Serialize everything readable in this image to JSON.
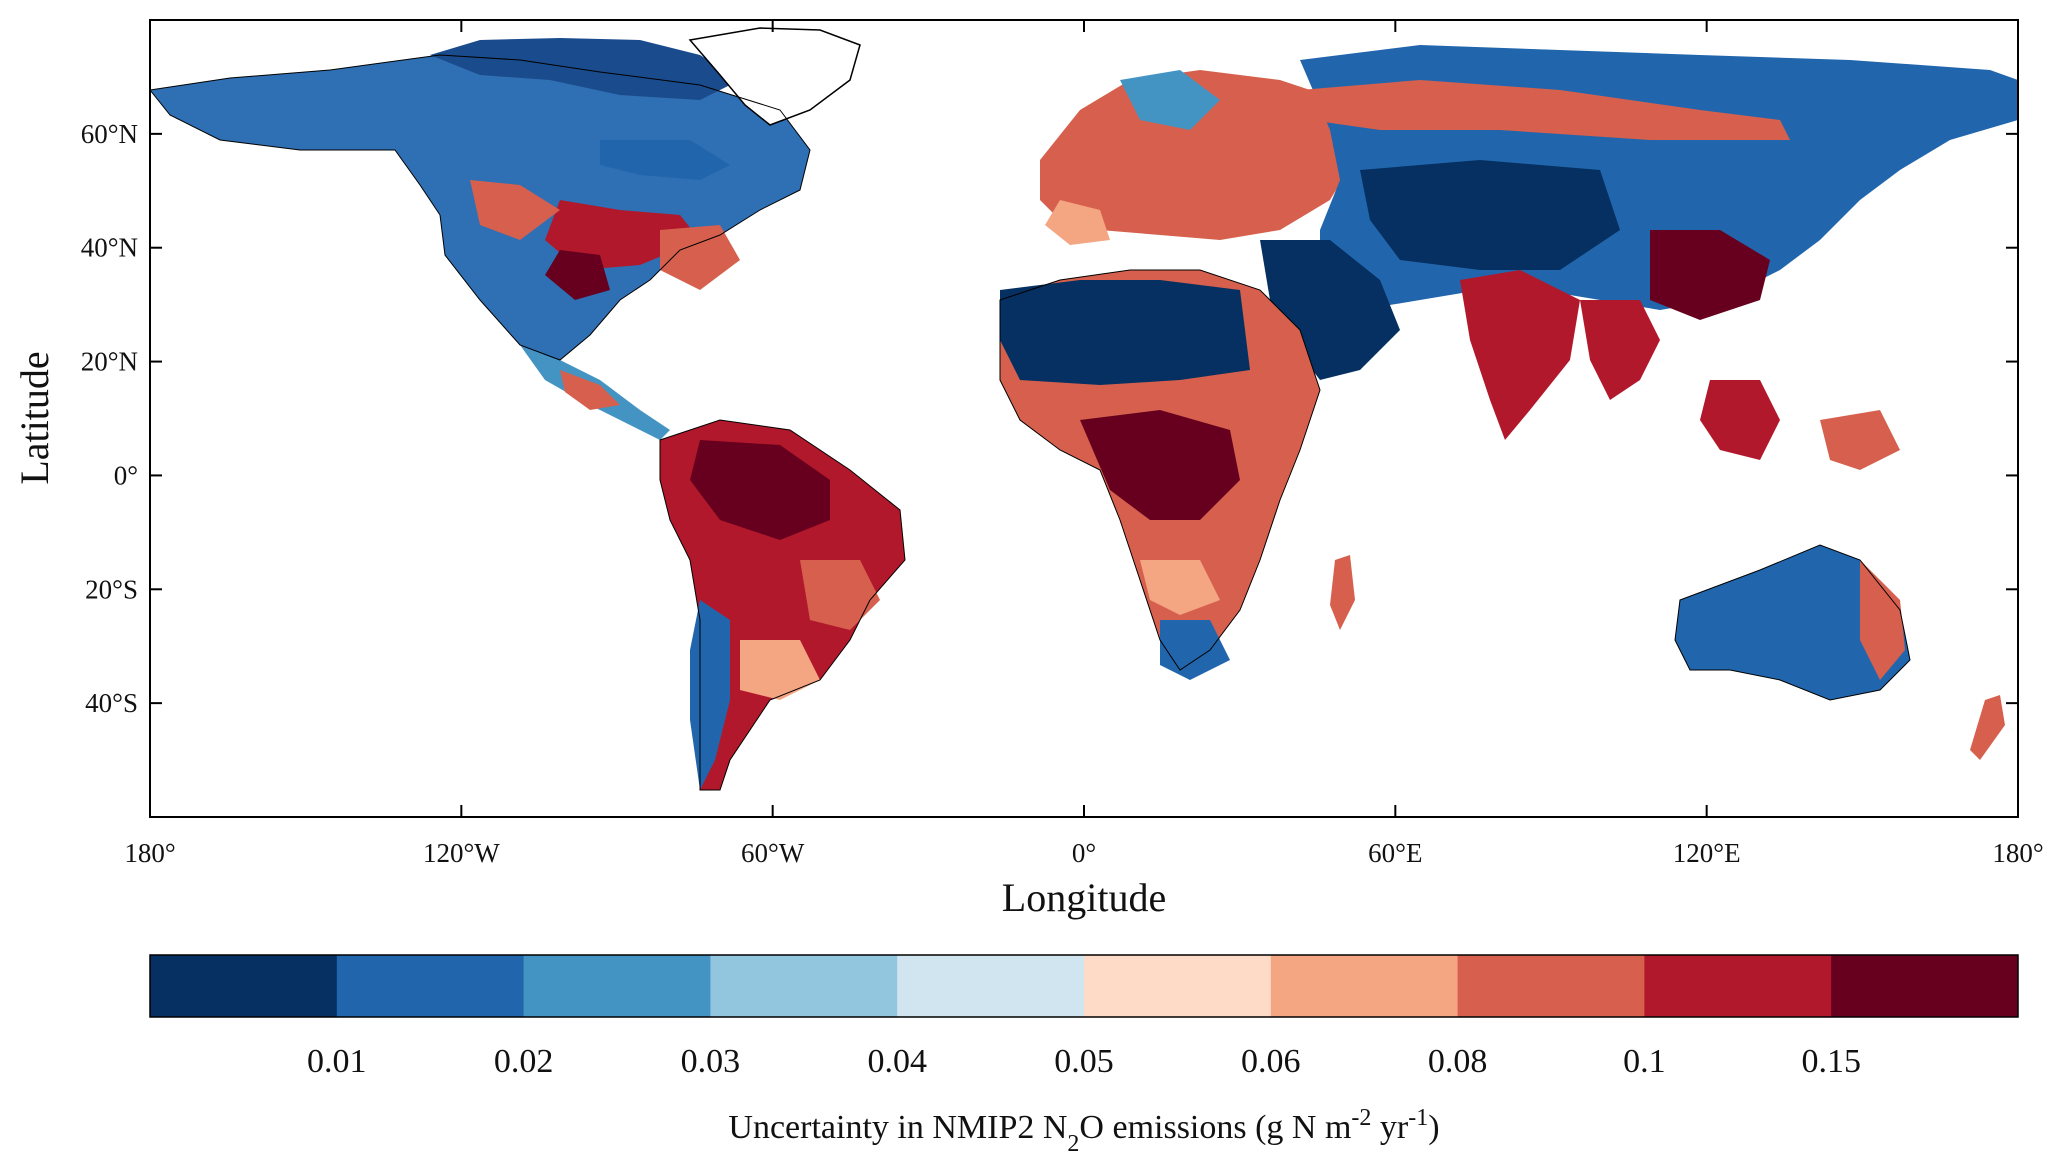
{
  "map": {
    "x_axis": {
      "title": "Longitude",
      "ticks": [
        "180°",
        "120°W",
        "60°W",
        "0°",
        "60°E",
        "120°E",
        "180°"
      ],
      "tick_values": [
        -180,
        -120,
        -60,
        0,
        60,
        120,
        180
      ],
      "range": [
        -180,
        180
      ]
    },
    "y_axis": {
      "title": "Latitude",
      "ticks": [
        "60°N",
        "40°N",
        "20°N",
        "0°",
        "20°S",
        "40°S"
      ],
      "tick_values": [
        60,
        40,
        20,
        0,
        -20,
        -40
      ],
      "range": [
        -60,
        80
      ]
    },
    "colorbar": {
      "colors": [
        "#053061",
        "#2166ac",
        "#4393c3",
        "#92c5de",
        "#d1e5f0",
        "#fddbc7",
        "#f4a582",
        "#d6604d",
        "#b2182b",
        "#67001f"
      ],
      "tick_labels": [
        "0.01",
        "0.02",
        "0.03",
        "0.04",
        "0.05",
        "0.06",
        "0.08",
        "0.1",
        "0.15"
      ],
      "title_parts": {
        "a": "Uncertainty in NMIP2 N",
        "sub": "2",
        "b": "O emissions (g N m",
        "sup1": "-2",
        "c": " yr",
        "sup2": "-1",
        "d": ")"
      }
    }
  }
}
